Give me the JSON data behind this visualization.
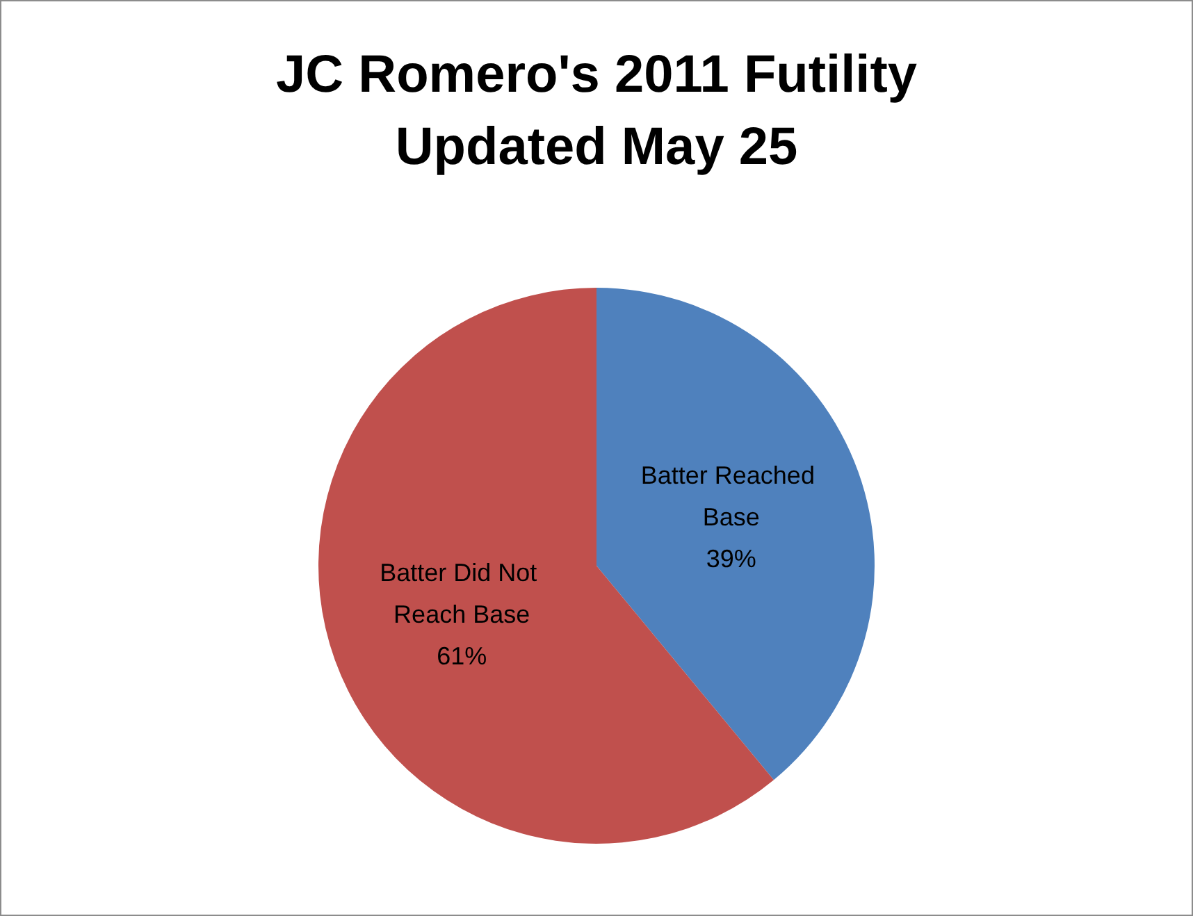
{
  "chart_data": {
    "type": "pie",
    "title": "JC Romero's 2011 Futility\nUpdated May 25",
    "categories": [
      "Batter Reached Base",
      "Batter Did Not Reach Base"
    ],
    "values": [
      39,
      61
    ],
    "colors": [
      "#4f81bd",
      "#c0504d"
    ],
    "value_labels": [
      "39%",
      "61%"
    ]
  }
}
